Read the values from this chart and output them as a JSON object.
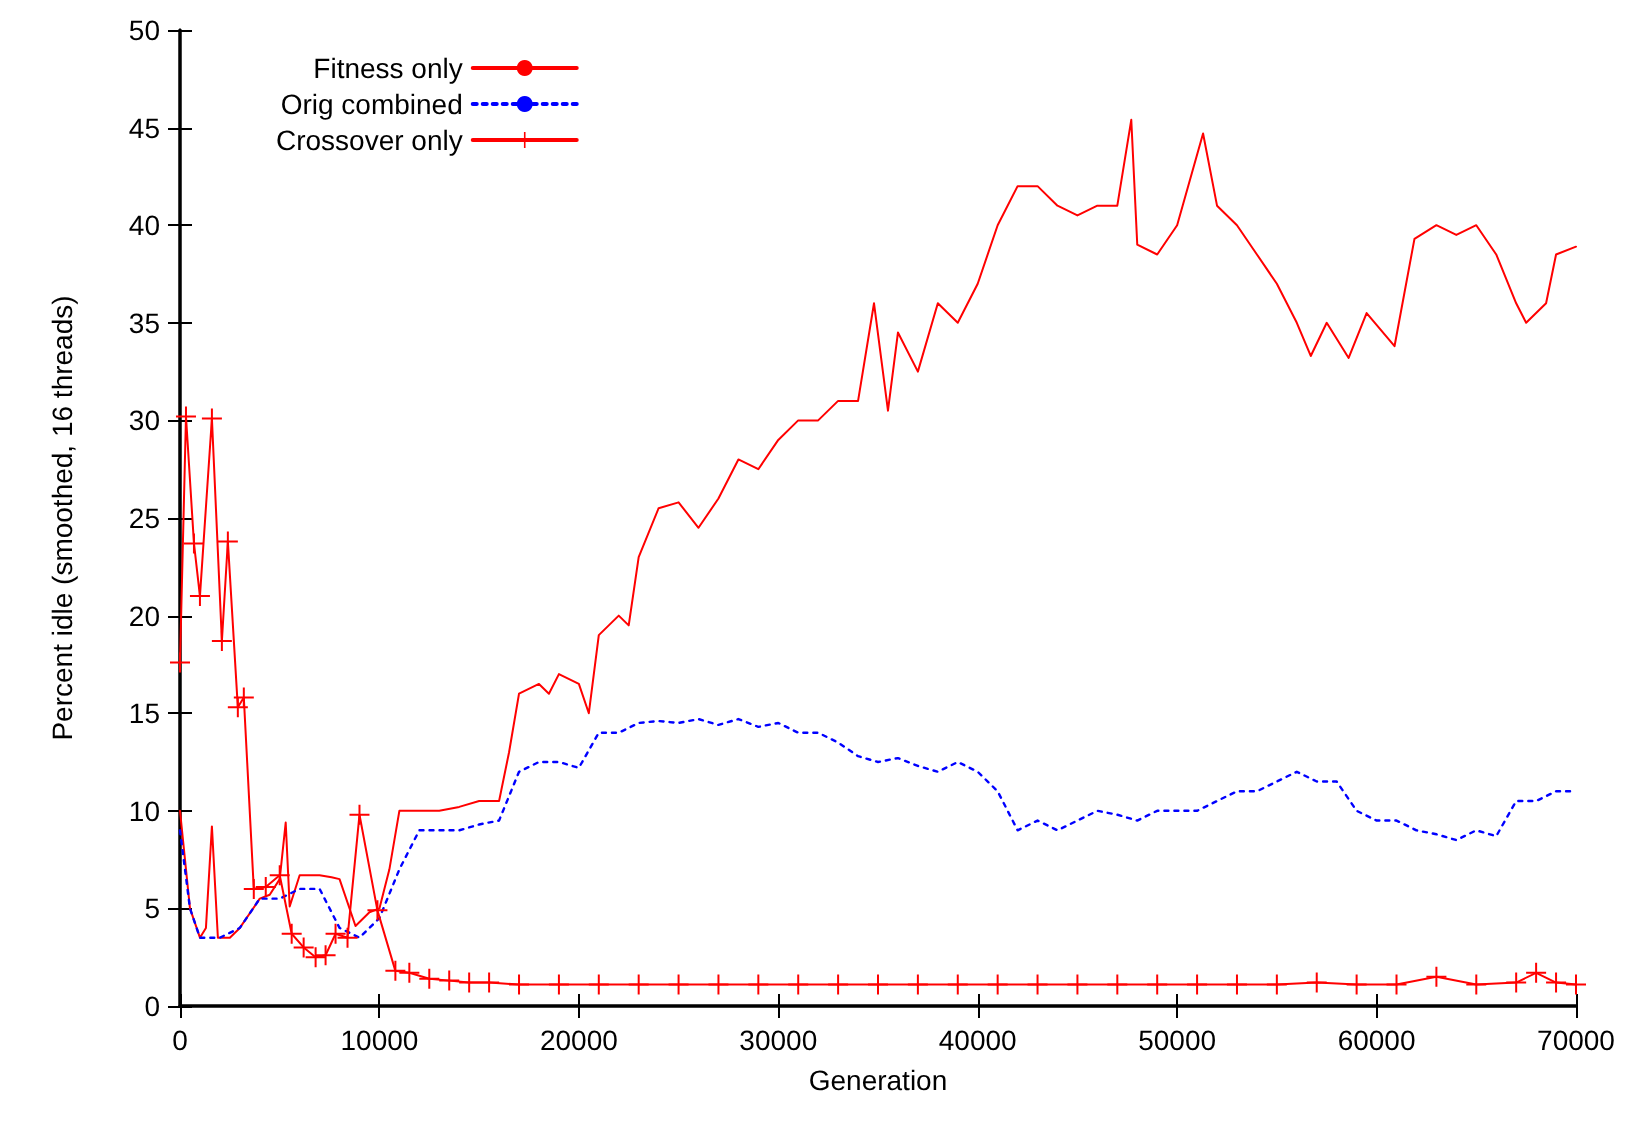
{
  "chart_data": {
    "type": "line",
    "xlabel": "Generation",
    "ylabel": "Percent idle (smoothed, 16 threads)",
    "xlim": [
      0,
      70000
    ],
    "ylim": [
      0,
      50
    ],
    "xticks": [
      0,
      10000,
      20000,
      30000,
      40000,
      50000,
      60000,
      70000
    ],
    "yticks": [
      0,
      5,
      10,
      15,
      20,
      25,
      30,
      35,
      40,
      45,
      50
    ],
    "grid": false,
    "legend": "top left",
    "series": [
      {
        "name": "Fitness only",
        "color": "#ff0000",
        "line_style": "solid",
        "marker": "none",
        "x": [
          0,
          500,
          1000,
          1300,
          1600,
          1900,
          2500,
          3000,
          4000,
          4500,
          5000,
          5300,
          5500,
          6000,
          7000,
          7600,
          8000,
          8800,
          9500,
          10000,
          10500,
          11000,
          12000,
          13000,
          14000,
          15000,
          16000,
          16500,
          17000,
          18000,
          18500,
          19000,
          20000,
          20500,
          21000,
          22000,
          22500,
          23000,
          24000,
          25000,
          26000,
          27000,
          28000,
          29000,
          30000,
          31000,
          32000,
          33000,
          34000,
          34800,
          35500,
          36000,
          37000,
          38000,
          39000,
          40000,
          41000,
          42000,
          43000,
          44000,
          45000,
          46000,
          47000,
          47700,
          48000,
          49000,
          50000,
          51300,
          52000,
          53000,
          54000,
          55000,
          56000,
          56700,
          57500,
          58600,
          59500,
          60900,
          61900,
          63000,
          64000,
          65000,
          66000,
          67000,
          67500,
          68500,
          69000,
          70000
        ],
        "values": [
          10,
          5,
          3.5,
          4,
          9.2,
          3.5,
          3.5,
          4,
          5.5,
          5.7,
          6.5,
          9.4,
          5.1,
          6.7,
          6.7,
          6.6,
          6.5,
          4.1,
          4.8,
          5,
          7,
          10,
          10,
          10,
          10.2,
          10.5,
          10.5,
          13,
          16,
          16.5,
          16,
          17,
          16.5,
          15,
          19,
          20,
          19.5,
          23,
          25.5,
          25.8,
          24.5,
          26,
          28,
          27.5,
          29,
          30,
          30,
          31,
          31,
          36,
          30.5,
          34.5,
          32.5,
          36,
          35,
          37,
          40,
          42,
          42,
          41,
          40.5,
          41,
          41,
          45.4,
          39,
          38.5,
          40,
          44.7,
          41,
          40,
          38.5,
          37,
          35,
          33.3,
          35,
          33.2,
          35.5,
          33.8,
          39.3,
          40,
          39.5,
          40,
          38.5,
          36,
          35,
          36,
          38.5,
          38.9
        ]
      },
      {
        "name": "Orig combined",
        "color": "#0000ff",
        "line_style": "dotted",
        "marker": "none",
        "x": [
          0,
          500,
          1000,
          2000,
          3000,
          4000,
          5000,
          6000,
          7000,
          8000,
          9000,
          10000,
          11000,
          12000,
          13000,
          14000,
          15000,
          16000,
          17000,
          18000,
          19000,
          20000,
          21000,
          22000,
          23000,
          24000,
          25000,
          26000,
          27000,
          28000,
          29000,
          30000,
          31000,
          32000,
          33000,
          34000,
          35000,
          36000,
          37000,
          38000,
          39000,
          40000,
          41000,
          42000,
          43000,
          44000,
          45000,
          46000,
          47000,
          48000,
          49000,
          50000,
          51000,
          52000,
          53000,
          54000,
          55000,
          56000,
          57000,
          58000,
          59000,
          60000,
          61000,
          62000,
          63000,
          64000,
          65000,
          66000,
          67000,
          68000,
          69000,
          70000
        ],
        "values": [
          9,
          5,
          3.5,
          3.5,
          4,
          5.5,
          5.5,
          6,
          6,
          4,
          3.5,
          4.5,
          7,
          9,
          9,
          9,
          9.3,
          9.5,
          12,
          12.5,
          12.5,
          12.2,
          14,
          14,
          14.5,
          14.6,
          14.5,
          14.7,
          14.4,
          14.7,
          14.3,
          14.5,
          14,
          14,
          13.5,
          12.8,
          12.5,
          12.7,
          12.3,
          12,
          12.5,
          12,
          11,
          9,
          9.5,
          9,
          9.5,
          10,
          9.8,
          9.5,
          10,
          10,
          10,
          10.5,
          11,
          11,
          11.5,
          12,
          11.5,
          11.5,
          10,
          9.5,
          9.5,
          9,
          8.8,
          8.5,
          9,
          8.7,
          10.5,
          10.5,
          11,
          11
        ]
      },
      {
        "name": "Crossover only",
        "color": "#ff0000",
        "line_style": "solid",
        "marker": "cross",
        "x": [
          0,
          300,
          700,
          1000,
          1600,
          2100,
          2400,
          2900,
          3200,
          3700,
          4300,
          5000,
          5600,
          6200,
          6800,
          7300,
          7800,
          8400,
          9000,
          9900,
          10800,
          11500,
          12500,
          13500,
          14500,
          15500,
          17000,
          19000,
          21000,
          23000,
          25000,
          27000,
          29000,
          31000,
          33000,
          35000,
          37000,
          39000,
          41000,
          43000,
          45000,
          47000,
          49000,
          51000,
          53000,
          55000,
          57000,
          59000,
          61000,
          63000,
          65000,
          67000,
          68000,
          69000,
          70000
        ],
        "values": [
          17.6,
          30.2,
          23.7,
          21,
          30.1,
          18.7,
          23.8,
          15.3,
          15.8,
          6,
          6.1,
          6.7,
          3.7,
          3,
          2.5,
          2.6,
          3.7,
          3.5,
          9.8,
          4.9,
          1.8,
          1.7,
          1.4,
          1.3,
          1.2,
          1.2,
          1.1,
          1.1,
          1.1,
          1.1,
          1.1,
          1.1,
          1.1,
          1.1,
          1.1,
          1.1,
          1.1,
          1.1,
          1.1,
          1.1,
          1.1,
          1.1,
          1.1,
          1.1,
          1.1,
          1.1,
          1.2,
          1.1,
          1.1,
          1.5,
          1.1,
          1.2,
          1.7,
          1.2,
          1.1
        ]
      }
    ]
  }
}
